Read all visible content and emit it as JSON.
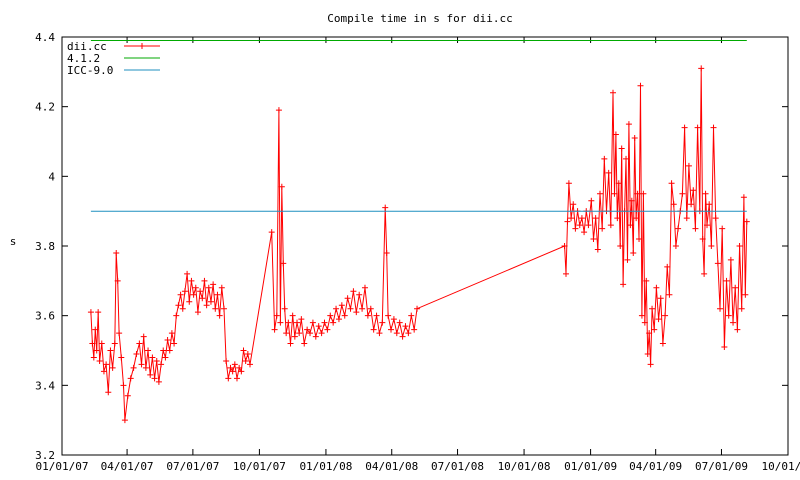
{
  "chart_data": {
    "type": "line",
    "title": "Compile time in s for dii.cc",
    "xlabel": "",
    "ylabel": "s",
    "xlim": [
      "2007-01-01",
      "2009-10-01"
    ],
    "ylim": [
      3.2,
      4.4
    ],
    "x_ticks": [
      "01/01/07",
      "04/01/07",
      "07/01/07",
      "10/01/07",
      "01/01/08",
      "04/01/08",
      "07/01/08",
      "10/01/08",
      "01/01/09",
      "04/01/09",
      "07/01/09",
      "10/01/09"
    ],
    "y_ticks": [
      "3.2",
      "3.4",
      "3.6",
      "3.8",
      "4",
      "4.2",
      "4.4"
    ],
    "grid": false,
    "legend_position": "top-left",
    "series": [
      {
        "name": "dii.cc",
        "color": "#ff0000",
        "marker": "plus",
        "points": [
          [
            "2007-02-10",
            3.61
          ],
          [
            "2007-02-12",
            3.52
          ],
          [
            "2007-02-14",
            3.48
          ],
          [
            "2007-02-16",
            3.56
          ],
          [
            "2007-02-18",
            3.5
          ],
          [
            "2007-02-20",
            3.61
          ],
          [
            "2007-02-22",
            3.47
          ],
          [
            "2007-02-25",
            3.52
          ],
          [
            "2007-02-28",
            3.44
          ],
          [
            "2007-03-03",
            3.46
          ],
          [
            "2007-03-06",
            3.38
          ],
          [
            "2007-03-09",
            3.5
          ],
          [
            "2007-03-12",
            3.45
          ],
          [
            "2007-03-15",
            3.52
          ],
          [
            "2007-03-17",
            3.78
          ],
          [
            "2007-03-19",
            3.7
          ],
          [
            "2007-03-21",
            3.55
          ],
          [
            "2007-03-24",
            3.48
          ],
          [
            "2007-03-27",
            3.4
          ],
          [
            "2007-03-29",
            3.3
          ],
          [
            "2007-04-02",
            3.37
          ],
          [
            "2007-04-06",
            3.42
          ],
          [
            "2007-04-10",
            3.45
          ],
          [
            "2007-04-14",
            3.49
          ],
          [
            "2007-04-18",
            3.52
          ],
          [
            "2007-04-21",
            3.46
          ],
          [
            "2007-04-24",
            3.54
          ],
          [
            "2007-04-27",
            3.45
          ],
          [
            "2007-04-30",
            3.5
          ],
          [
            "2007-05-03",
            3.43
          ],
          [
            "2007-05-06",
            3.48
          ],
          [
            "2007-05-09",
            3.42
          ],
          [
            "2007-05-12",
            3.47
          ],
          [
            "2007-05-15",
            3.41
          ],
          [
            "2007-05-18",
            3.46
          ],
          [
            "2007-05-21",
            3.5
          ],
          [
            "2007-05-24",
            3.48
          ],
          [
            "2007-05-27",
            3.53
          ],
          [
            "2007-05-30",
            3.5
          ],
          [
            "2007-06-02",
            3.55
          ],
          [
            "2007-06-05",
            3.52
          ],
          [
            "2007-06-08",
            3.6
          ],
          [
            "2007-06-11",
            3.63
          ],
          [
            "2007-06-14",
            3.66
          ],
          [
            "2007-06-17",
            3.62
          ],
          [
            "2007-06-20",
            3.67
          ],
          [
            "2007-06-23",
            3.72
          ],
          [
            "2007-06-26",
            3.64
          ],
          [
            "2007-06-29",
            3.7
          ],
          [
            "2007-07-02",
            3.66
          ],
          [
            "2007-07-05",
            3.68
          ],
          [
            "2007-07-08",
            3.61
          ],
          [
            "2007-07-11",
            3.67
          ],
          [
            "2007-07-14",
            3.65
          ],
          [
            "2007-07-17",
            3.7
          ],
          [
            "2007-07-20",
            3.63
          ],
          [
            "2007-07-23",
            3.68
          ],
          [
            "2007-07-26",
            3.64
          ],
          [
            "2007-07-29",
            3.69
          ],
          [
            "2007-08-01",
            3.62
          ],
          [
            "2007-08-04",
            3.66
          ],
          [
            "2007-08-07",
            3.6
          ],
          [
            "2007-08-10",
            3.68
          ],
          [
            "2007-08-13",
            3.62
          ],
          [
            "2007-08-16",
            3.47
          ],
          [
            "2007-08-19",
            3.42
          ],
          [
            "2007-08-22",
            3.45
          ],
          [
            "2007-08-25",
            3.44
          ],
          [
            "2007-08-28",
            3.46
          ],
          [
            "2007-08-31",
            3.42
          ],
          [
            "2007-09-03",
            3.45
          ],
          [
            "2007-09-06",
            3.44
          ],
          [
            "2007-09-09",
            3.5
          ],
          [
            "2007-09-12",
            3.47
          ],
          [
            "2007-09-15",
            3.49
          ],
          [
            "2007-09-18",
            3.46
          ],
          [
            "2007-10-18",
            3.84
          ],
          [
            "2007-10-22",
            3.56
          ],
          [
            "2007-10-25",
            3.6
          ],
          [
            "2007-10-28",
            4.19
          ],
          [
            "2007-10-30",
            3.58
          ],
          [
            "2007-11-01",
            3.97
          ],
          [
            "2007-11-03",
            3.75
          ],
          [
            "2007-11-05",
            3.62
          ],
          [
            "2007-11-07",
            3.55
          ],
          [
            "2007-11-10",
            3.58
          ],
          [
            "2007-11-13",
            3.52
          ],
          [
            "2007-11-16",
            3.6
          ],
          [
            "2007-11-19",
            3.54
          ],
          [
            "2007-11-22",
            3.58
          ],
          [
            "2007-11-25",
            3.55
          ],
          [
            "2007-11-28",
            3.59
          ],
          [
            "2007-12-02",
            3.52
          ],
          [
            "2007-12-06",
            3.56
          ],
          [
            "2007-12-10",
            3.55
          ],
          [
            "2007-12-14",
            3.58
          ],
          [
            "2007-12-18",
            3.54
          ],
          [
            "2007-12-22",
            3.57
          ],
          [
            "2007-12-26",
            3.55
          ],
          [
            "2007-12-30",
            3.58
          ],
          [
            "2008-01-03",
            3.56
          ],
          [
            "2008-01-07",
            3.6
          ],
          [
            "2008-01-11",
            3.58
          ],
          [
            "2008-01-15",
            3.62
          ],
          [
            "2008-01-19",
            3.59
          ],
          [
            "2008-01-23",
            3.63
          ],
          [
            "2008-01-27",
            3.6
          ],
          [
            "2008-01-31",
            3.65
          ],
          [
            "2008-02-04",
            3.62
          ],
          [
            "2008-02-08",
            3.67
          ],
          [
            "2008-02-12",
            3.61
          ],
          [
            "2008-02-16",
            3.66
          ],
          [
            "2008-02-20",
            3.62
          ],
          [
            "2008-02-24",
            3.68
          ],
          [
            "2008-02-28",
            3.6
          ],
          [
            "2008-03-03",
            3.62
          ],
          [
            "2008-03-07",
            3.56
          ],
          [
            "2008-03-11",
            3.6
          ],
          [
            "2008-03-15",
            3.55
          ],
          [
            "2008-03-19",
            3.58
          ],
          [
            "2008-03-23",
            3.91
          ],
          [
            "2008-03-25",
            3.78
          ],
          [
            "2008-03-27",
            3.6
          ],
          [
            "2008-03-31",
            3.56
          ],
          [
            "2008-04-04",
            3.59
          ],
          [
            "2008-04-08",
            3.55
          ],
          [
            "2008-04-12",
            3.58
          ],
          [
            "2008-04-16",
            3.54
          ],
          [
            "2008-04-20",
            3.57
          ],
          [
            "2008-04-24",
            3.55
          ],
          [
            "2008-04-28",
            3.6
          ],
          [
            "2008-05-02",
            3.56
          ],
          [
            "2008-05-06",
            3.62
          ],
          [
            "2008-11-26",
            3.8
          ],
          [
            "2008-11-28",
            3.72
          ],
          [
            "2008-11-30",
            3.87
          ],
          [
            "2008-12-02",
            3.98
          ],
          [
            "2008-12-05",
            3.88
          ],
          [
            "2008-12-08",
            3.92
          ],
          [
            "2008-12-11",
            3.85
          ],
          [
            "2008-12-14",
            3.9
          ],
          [
            "2008-12-17",
            3.86
          ],
          [
            "2008-12-20",
            3.88
          ],
          [
            "2008-12-23",
            3.84
          ],
          [
            "2008-12-26",
            3.9
          ],
          [
            "2008-12-29",
            3.86
          ],
          [
            "2009-01-02",
            3.93
          ],
          [
            "2009-01-05",
            3.82
          ],
          [
            "2009-01-08",
            3.88
          ],
          [
            "2009-01-11",
            3.79
          ],
          [
            "2009-01-14",
            3.95
          ],
          [
            "2009-01-17",
            3.85
          ],
          [
            "2009-01-20",
            4.05
          ],
          [
            "2009-01-23",
            3.9
          ],
          [
            "2009-01-26",
            4.01
          ],
          [
            "2009-01-29",
            3.86
          ],
          [
            "2009-02-01",
            4.24
          ],
          [
            "2009-02-03",
            3.95
          ],
          [
            "2009-02-05",
            4.12
          ],
          [
            "2009-02-07",
            3.88
          ],
          [
            "2009-02-09",
            3.98
          ],
          [
            "2009-02-11",
            3.8
          ],
          [
            "2009-02-13",
            4.08
          ],
          [
            "2009-02-15",
            3.69
          ],
          [
            "2009-02-17",
            3.9
          ],
          [
            "2009-02-19",
            4.05
          ],
          [
            "2009-02-21",
            3.76
          ],
          [
            "2009-02-23",
            4.15
          ],
          [
            "2009-02-25",
            3.86
          ],
          [
            "2009-02-27",
            3.93
          ],
          [
            "2009-03-01",
            3.78
          ],
          [
            "2009-03-03",
            4.11
          ],
          [
            "2009-03-05",
            3.88
          ],
          [
            "2009-03-07",
            3.95
          ],
          [
            "2009-03-09",
            3.82
          ],
          [
            "2009-03-11",
            4.26
          ],
          [
            "2009-03-13",
            3.6
          ],
          [
            "2009-03-15",
            3.95
          ],
          [
            "2009-03-17",
            3.58
          ],
          [
            "2009-03-19",
            3.7
          ],
          [
            "2009-03-21",
            3.49
          ],
          [
            "2009-03-23",
            3.55
          ],
          [
            "2009-03-25",
            3.46
          ],
          [
            "2009-03-27",
            3.62
          ],
          [
            "2009-03-30",
            3.56
          ],
          [
            "2009-04-02",
            3.68
          ],
          [
            "2009-04-05",
            3.59
          ],
          [
            "2009-04-08",
            3.65
          ],
          [
            "2009-04-11",
            3.52
          ],
          [
            "2009-04-14",
            3.6
          ],
          [
            "2009-04-17",
            3.74
          ],
          [
            "2009-04-20",
            3.66
          ],
          [
            "2009-04-23",
            3.98
          ],
          [
            "2009-04-26",
            3.92
          ],
          [
            "2009-04-29",
            3.8
          ],
          [
            "2009-05-02",
            3.85
          ],
          [
            "2009-05-05",
            3.9
          ],
          [
            "2009-05-08",
            3.95
          ],
          [
            "2009-05-11",
            4.14
          ],
          [
            "2009-05-14",
            3.88
          ],
          [
            "2009-05-17",
            4.03
          ],
          [
            "2009-05-20",
            3.92
          ],
          [
            "2009-05-23",
            3.96
          ],
          [
            "2009-05-26",
            3.85
          ],
          [
            "2009-05-29",
            4.14
          ],
          [
            "2009-06-01",
            3.9
          ],
          [
            "2009-06-03",
            4.31
          ],
          [
            "2009-06-05",
            3.82
          ],
          [
            "2009-06-07",
            3.72
          ],
          [
            "2009-06-09",
            3.95
          ],
          [
            "2009-06-11",
            3.86
          ],
          [
            "2009-06-14",
            3.92
          ],
          [
            "2009-06-17",
            3.8
          ],
          [
            "2009-06-20",
            4.14
          ],
          [
            "2009-06-23",
            3.88
          ],
          [
            "2009-06-26",
            3.75
          ],
          [
            "2009-06-29",
            3.62
          ],
          [
            "2009-07-02",
            3.85
          ],
          [
            "2009-07-05",
            3.51
          ],
          [
            "2009-07-08",
            3.7
          ],
          [
            "2009-07-11",
            3.6
          ],
          [
            "2009-07-14",
            3.76
          ],
          [
            "2009-07-17",
            3.58
          ],
          [
            "2009-07-20",
            3.68
          ],
          [
            "2009-07-23",
            3.56
          ],
          [
            "2009-07-26",
            3.8
          ],
          [
            "2009-07-29",
            3.62
          ],
          [
            "2009-08-01",
            3.94
          ],
          [
            "2009-08-03",
            3.66
          ],
          [
            "2009-08-05",
            3.87
          ]
        ]
      },
      {
        "name": "4.1.2",
        "color": "#00aa00",
        "marker": "none",
        "points": [
          [
            "2007-02-10",
            4.39
          ],
          [
            "2009-08-05",
            4.39
          ]
        ]
      },
      {
        "name": "ICC-9.0",
        "color": "#1f8fbf",
        "marker": "none",
        "points": [
          [
            "2007-02-10",
            3.9
          ],
          [
            "2009-08-05",
            3.9
          ]
        ]
      }
    ]
  }
}
